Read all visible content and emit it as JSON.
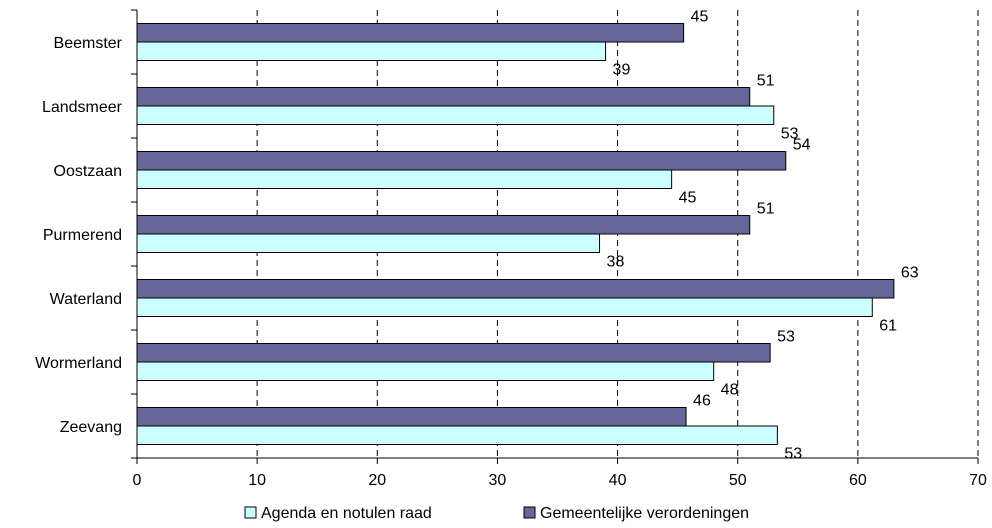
{
  "chart_data": {
    "type": "bar",
    "orientation": "horizontal",
    "categories": [
      "Beemster",
      "Landsmeer",
      "Oostzaan",
      "Purmerend",
      "Waterland",
      "Wormerland",
      "Zeevang"
    ],
    "series": [
      {
        "name": "Gemeentelijke verordeningen",
        "values": [
          45.5,
          51,
          54,
          51,
          63,
          52.7,
          45.7
        ],
        "labels": [
          "45",
          "51",
          "54",
          "51",
          "63",
          "53",
          "46"
        ],
        "color": "#666699"
      },
      {
        "name": "Agenda en notulen raad",
        "values": [
          39,
          53,
          44.5,
          38.5,
          61.2,
          48,
          53.3
        ],
        "labels": [
          "39",
          "53",
          "45",
          "38",
          "61",
          "48",
          "53"
        ],
        "color": "#ccffff"
      }
    ],
    "xlim": [
      0,
      70
    ],
    "x_ticks": [
      "0",
      "10",
      "20",
      "30",
      "40",
      "50",
      "60",
      "70"
    ],
    "grid": "vertical-dashed",
    "legend": {
      "position": "bottom",
      "entries": [
        "Agenda en notulen raad",
        "Gemeentelijke verordeningen"
      ]
    }
  }
}
